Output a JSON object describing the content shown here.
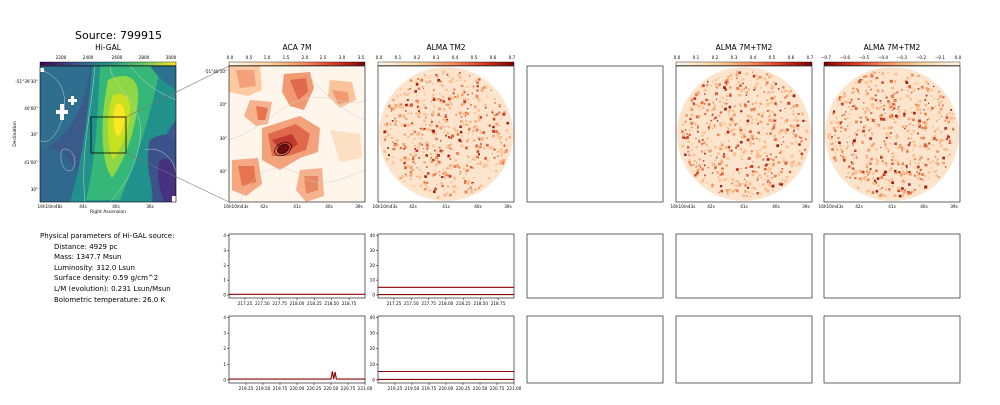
{
  "title": "Source: 799915",
  "panels": {
    "higal": {
      "title": "Hi-GAL",
      "colorbar_ticks": [
        "2200",
        "2400",
        "2600",
        "2800",
        "3000"
      ],
      "ylabel": "Declination",
      "xlabel": "Right Ascension",
      "yticks": [
        "-51°39'30\"",
        "40'00\"",
        "30\"",
        "41'00\"",
        "30\""
      ],
      "xticks": [
        "16h10m48s",
        "44s",
        "40s",
        "36s"
      ]
    },
    "aca7m": {
      "title": "ACA 7M",
      "colorbar_ticks": [
        "0.0",
        "0.5",
        "1.0",
        "1.5",
        "2.0",
        "2.5",
        "3.0",
        "3.5"
      ],
      "yticks": [
        "-51°40'10\"",
        "20\"",
        "30\"",
        "40\""
      ],
      "xticks": [
        "16h10m43s",
        "42s",
        "41s",
        "40s",
        "39s"
      ]
    },
    "almatm2": {
      "title": "ALMA TM2",
      "colorbar_ticks": [
        "0.0",
        "0.1",
        "0.2",
        "0.3",
        "0.4",
        "0.5",
        "0.6",
        "0.7"
      ],
      "xticks": [
        "16h10m43s",
        "42s",
        "41s",
        "40s",
        "39s"
      ]
    },
    "alma7mtm2": {
      "title": "ALMA 7M+TM2",
      "colorbar_ticks": [
        "0.0",
        "0.1",
        "0.2",
        "0.3",
        "0.4",
        "0.5",
        "0.6",
        "0.7"
      ],
      "xticks": [
        "16h10m43s",
        "42s",
        "41s",
        "40s",
        "39s"
      ]
    },
    "alma7mtm2_neg": {
      "title": "ALMA 7M+TM2",
      "colorbar_ticks": [
        "−0.7",
        "−0.6",
        "−0.5",
        "−0.4",
        "−0.3",
        "−0.2",
        "−0.1",
        "0.0"
      ],
      "xticks": [
        "16h10m43s",
        "42s",
        "41s",
        "40s",
        "39s"
      ]
    }
  },
  "parameters": {
    "header": "Physical parameters of Hi-GAL source:",
    "lines": [
      "Distance: 4929 pc",
      "Mass: 1347.7 Msun",
      "Luminosity: 312.0 Lsun",
      "Surface density: 0.59 g/cm^2",
      "L/M (evolution): 0.231 Lsun/Msun",
      "Bolometric temperature: 26.0 K"
    ]
  },
  "chart_data": [
    {
      "type": "line",
      "panel": "ACA 7M spectrum (upper)",
      "x_ticks": [
        "217.25",
        "217.50",
        "217.75",
        "218.00",
        "218.25",
        "218.50",
        "218.75"
      ],
      "xlim": [
        217.02,
        218.98
      ],
      "y_ticks": [
        "0",
        "1",
        "2",
        "3",
        "4"
      ],
      "ylim": [
        -0.2,
        4.1
      ],
      "series": [
        {
          "x": [
            217.02,
            218.98
          ],
          "values": [
            0.05,
            0.05
          ],
          "color": "#8b0000"
        }
      ]
    },
    {
      "type": "line",
      "panel": "ALMA TM2 spectrum (upper)",
      "x_ticks": [
        "217.25",
        "217.50",
        "217.75",
        "218.00",
        "218.25",
        "218.50",
        "218.75"
      ],
      "xlim": [
        217.02,
        218.98
      ],
      "y_ticks": [
        "0",
        "10",
        "20",
        "30",
        "40"
      ],
      "ylim": [
        -2,
        41
      ],
      "series": [
        {
          "x": [
            217.02,
            218.98
          ],
          "values": [
            5.2,
            5.2
          ],
          "color": "#8b0000"
        },
        {
          "x": [
            217.02,
            218.98
          ],
          "values": [
            0.3,
            0.3
          ],
          "color": "#8b0000"
        }
      ]
    },
    {
      "type": "line",
      "panel": "ACA 7M spectrum (lower)",
      "x_ticks": [
        "219.25",
        "219.50",
        "219.75",
        "220.00",
        "220.25",
        "220.50",
        "220.75",
        "221.00"
      ],
      "xlim": [
        219.0,
        221.0
      ],
      "y_ticks": [
        "0",
        "1",
        "2",
        "3",
        "4"
      ],
      "ylim": [
        -0.2,
        4.1
      ],
      "series": [
        {
          "x": [
            219.0,
            220.5,
            220.52,
            220.54,
            220.56,
            220.58,
            221.0
          ],
          "values": [
            0.05,
            0.05,
            0.55,
            0.05,
            0.5,
            0.05,
            0.05
          ],
          "color": "#8b0000"
        }
      ]
    },
    {
      "type": "line",
      "panel": "ALMA TM2 spectrum (lower)",
      "x_ticks": [
        "219.25",
        "219.50",
        "219.75",
        "220.00",
        "220.25",
        "220.50",
        "220.75",
        "221.00"
      ],
      "xlim": [
        219.0,
        221.0
      ],
      "y_ticks": [
        "0",
        "10",
        "20",
        "30",
        "40"
      ],
      "ylim": [
        -2,
        41
      ],
      "series": [
        {
          "x": [
            219.0,
            221.0
          ],
          "values": [
            5.4,
            5.4
          ],
          "color": "#8b0000"
        },
        {
          "x": [
            219.0,
            221.0
          ],
          "values": [
            0.3,
            0.3
          ],
          "color": "#8b0000"
        }
      ]
    }
  ]
}
